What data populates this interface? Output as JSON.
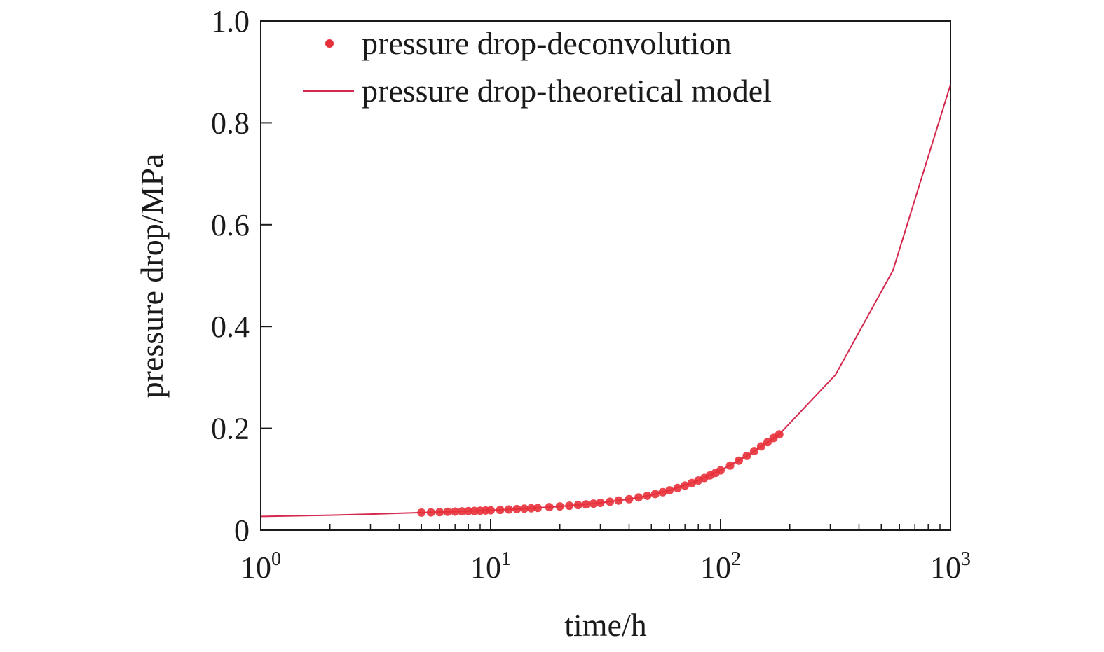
{
  "chart_data": {
    "type": "scatter",
    "title": "",
    "xlabel": "time/h",
    "ylabel": "pressure drop/MPa",
    "x_scale": "log",
    "xlim": [
      1,
      1000
    ],
    "ylim": [
      0,
      1.0
    ],
    "grid": false,
    "legend_position": "top-left",
    "x_ticks": [
      {
        "base": "10",
        "exp": "0",
        "value": 1
      },
      {
        "base": "10",
        "exp": "1",
        "value": 10
      },
      {
        "base": "10",
        "exp": "2",
        "value": 100
      },
      {
        "base": "10",
        "exp": "3",
        "value": 1000
      }
    ],
    "y_ticks": [
      {
        "label": "0",
        "value": 0
      },
      {
        "label": "0.2",
        "value": 0.2
      },
      {
        "label": "0.4",
        "value": 0.4
      },
      {
        "label": "0.6",
        "value": 0.6
      },
      {
        "label": "0.8",
        "value": 0.8
      },
      {
        "label": "1.0",
        "value": 1.0
      }
    ],
    "series": [
      {
        "name": "pressure drop-deconvolution",
        "kind": "scatter",
        "color": "#e8303a",
        "points": [
          [
            5.0,
            0.0345
          ],
          [
            5.5,
            0.035
          ],
          [
            6.0,
            0.0355
          ],
          [
            6.5,
            0.036
          ],
          [
            7.0,
            0.0365
          ],
          [
            7.5,
            0.037
          ],
          [
            8.0,
            0.0374
          ],
          [
            8.5,
            0.0378
          ],
          [
            9.0,
            0.0382
          ],
          [
            9.5,
            0.0386
          ],
          [
            10,
            0.039
          ],
          [
            11,
            0.0398
          ],
          [
            12,
            0.0406
          ],
          [
            13,
            0.0414
          ],
          [
            14,
            0.0422
          ],
          [
            15,
            0.043
          ],
          [
            16,
            0.0437
          ],
          [
            18,
            0.0452
          ],
          [
            20,
            0.0466
          ],
          [
            22,
            0.048
          ],
          [
            24,
            0.0494
          ],
          [
            26,
            0.0508
          ],
          [
            28,
            0.0522
          ],
          [
            30,
            0.0536
          ],
          [
            33,
            0.0558
          ],
          [
            36,
            0.058
          ],
          [
            40,
            0.061
          ],
          [
            44,
            0.0642
          ],
          [
            48,
            0.0675
          ],
          [
            52,
            0.071
          ],
          [
            56,
            0.0745
          ],
          [
            60,
            0.0782
          ],
          [
            65,
            0.0828
          ],
          [
            70,
            0.0875
          ],
          [
            75,
            0.0925
          ],
          [
            80,
            0.0975
          ],
          [
            85,
            0.1025
          ],
          [
            90,
            0.1075
          ],
          [
            95,
            0.1125
          ],
          [
            100,
            0.1175
          ],
          [
            110,
            0.127
          ],
          [
            120,
            0.1365
          ],
          [
            130,
            0.146
          ],
          [
            140,
            0.1555
          ],
          [
            150,
            0.1645
          ],
          [
            160,
            0.173
          ],
          [
            170,
            0.181
          ],
          [
            180,
            0.188
          ]
        ]
      },
      {
        "name": "pressure drop-theoretical model",
        "kind": "line",
        "color": "#d4284e",
        "points": [
          [
            1,
            0.027
          ],
          [
            2,
            0.0295
          ],
          [
            3,
            0.0315
          ],
          [
            5,
            0.0345
          ],
          [
            7,
            0.0365
          ],
          [
            10,
            0.039
          ],
          [
            15,
            0.043
          ],
          [
            20,
            0.0466
          ],
          [
            30,
            0.0536
          ],
          [
            40,
            0.061
          ],
          [
            50,
            0.069
          ],
          [
            60,
            0.0782
          ],
          [
            80,
            0.0975
          ],
          [
            100,
            0.1175
          ],
          [
            130,
            0.146
          ],
          [
            180,
            0.188
          ],
          [
            316,
            0.305
          ],
          [
            562,
            0.51
          ],
          [
            1000,
            0.875
          ]
        ]
      }
    ]
  }
}
